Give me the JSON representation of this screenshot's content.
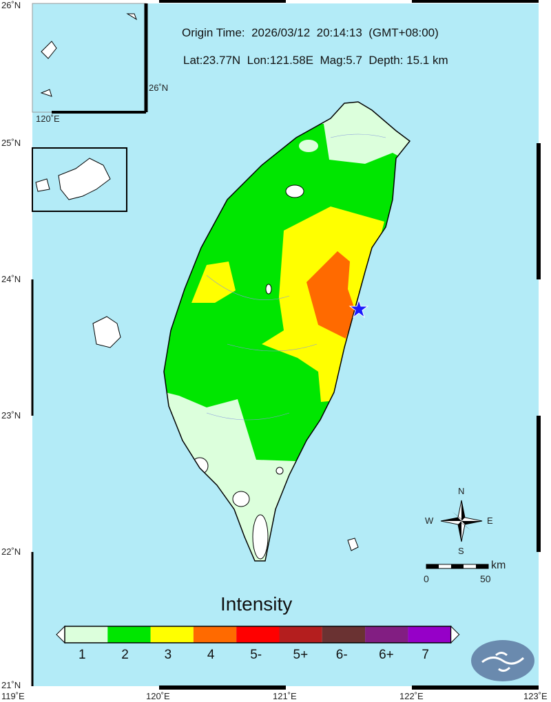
{
  "header": {
    "origin_time": "Origin Time:  2026/03/12  20:14:13  (GMT+08:00)",
    "details": "Lat:23.77N  Lon:121.58E  Mag:5.7  Depth: 15.1 km"
  },
  "epicenter": {
    "lat": 23.77,
    "lon": 121.58
  },
  "axes": {
    "lat_labels": [
      "26˚N",
      "25˚N",
      "24˚N",
      "23˚N",
      "22˚N",
      "21˚N"
    ],
    "lon_labels": [
      "119˚E",
      "120˚E",
      "121˚E",
      "122˚E",
      "123˚E"
    ],
    "inset_lat_label": "26˚N",
    "inset_lon_label": "120˚E"
  },
  "compass": {
    "n": "N",
    "s": "S",
    "e": "E",
    "w": "W"
  },
  "scale": {
    "unit": "km",
    "start": "0",
    "end": "50"
  },
  "legend": {
    "title": "Intensity",
    "levels": [
      {
        "label": "1",
        "color": "#dcffdc"
      },
      {
        "label": "2",
        "color": "#00e600"
      },
      {
        "label": "3",
        "color": "#ffff00"
      },
      {
        "label": "4",
        "color": "#ff6a00"
      },
      {
        "label": "5-",
        "color": "#ff0000"
      },
      {
        "label": "5+",
        "color": "#b41e1e"
      },
      {
        "label": "6-",
        "color": "#6a3232"
      },
      {
        "label": "6+",
        "color": "#821e82"
      },
      {
        "label": "7",
        "color": "#9600c8"
      }
    ]
  },
  "colors": {
    "sea": "#b3ebf7",
    "land_unfelt": "#ffffff",
    "logo": "#6a8aae",
    "epicenter": "#1a1aff"
  }
}
